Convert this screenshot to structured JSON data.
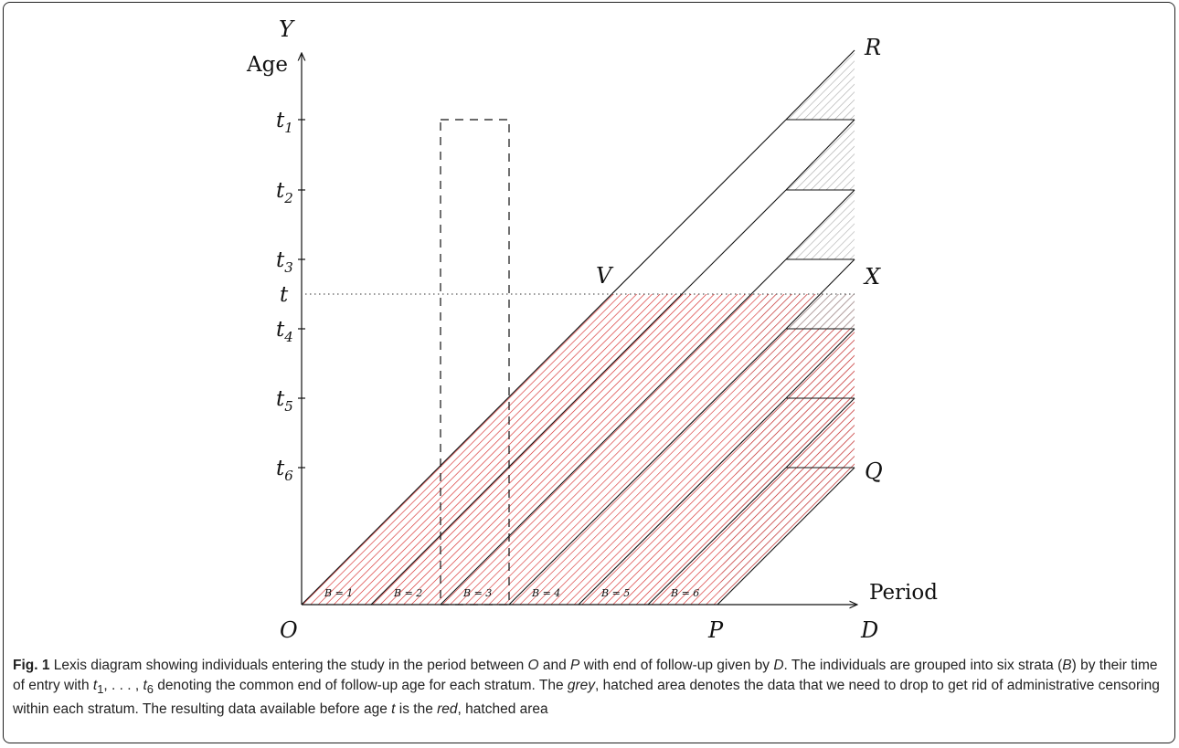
{
  "axes": {
    "y_letter": "Y",
    "y_label": "Age",
    "x_label": "Period",
    "origin": "O"
  },
  "ticks": [
    "t1",
    "t2",
    "t3",
    "t",
    "t4",
    "t5",
    "t6"
  ],
  "points": {
    "R": "R",
    "V": "V",
    "X": "X",
    "Q": "Q",
    "P": "P",
    "D": "D"
  },
  "strata": [
    "B = 1",
    "B = 2",
    "B = 3",
    "B = 4",
    "B = 5",
    "B = 6"
  ],
  "colors": {
    "red_hatch": "#d42020",
    "grey_hatch": "#aaaaaa",
    "line": "#111111"
  },
  "caption": {
    "fig_label": "Fig. 1",
    "part1": " Lexis diagram showing individuals entering the study in the period between ",
    "O": "O",
    "part2": " and ",
    "P": "P",
    "part3": " with end of follow-up given by ",
    "D": "D",
    "part4": ". The individuals are grouped into six strata (",
    "B": "B",
    "part5": ") by their time of entry with ",
    "part6": " denoting the common end of follow-up age for each stratum. The ",
    "grey": "grey",
    "part7": ", hatched area denotes the data that we need to drop to get rid of administrative censoring within each stratum. The resulting data available before age ",
    "t": "t",
    "part8": " is the ",
    "red": "red",
    "part9": ", hatched area"
  }
}
